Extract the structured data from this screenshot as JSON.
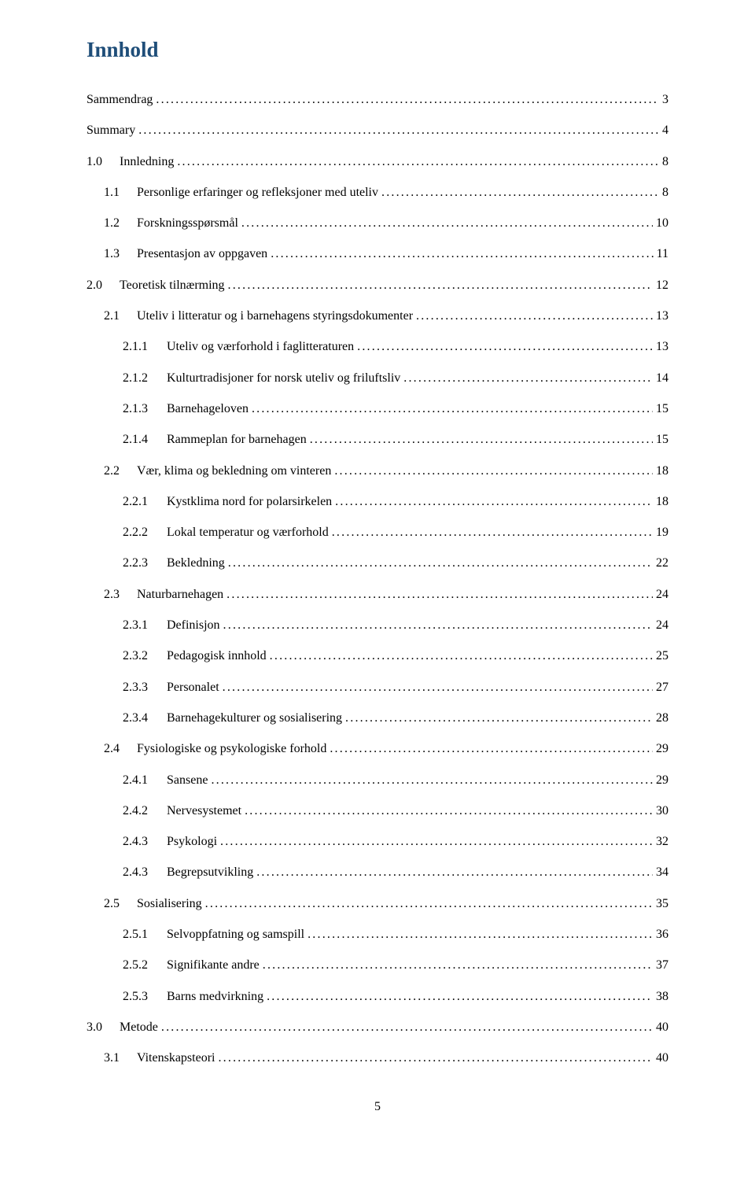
{
  "colors": {
    "heading": "#1f4e79",
    "text": "#000000",
    "background": "#ffffff"
  },
  "typography": {
    "body_font": "Times New Roman",
    "heading_fontsize_pt": 20,
    "body_fontsize_pt": 12
  },
  "heading": "Innhold",
  "page_number": "5",
  "entries": [
    {
      "indent": 0,
      "num": "",
      "label": "Sammendrag",
      "page": "3"
    },
    {
      "indent": 0,
      "num": "",
      "label": "Summary",
      "page": "4"
    },
    {
      "indent": 0,
      "num": "1.0",
      "label": "Innledning",
      "page": "8"
    },
    {
      "indent": 1,
      "num": "1.1",
      "label": "Personlige erfaringer og refleksjoner  med uteliv",
      "page": "8"
    },
    {
      "indent": 1,
      "num": "1.2",
      "label": "Forskningsspørsmål",
      "page": "10"
    },
    {
      "indent": 1,
      "num": "1.3",
      "label": "Presentasjon av oppgaven",
      "page": "11"
    },
    {
      "indent": 0,
      "num": "2.0",
      "label": "Teoretisk tilnærming",
      "page": "12"
    },
    {
      "indent": 1,
      "num": "2.1",
      "label": "Uteliv i litteratur og i barnehagens styringsdokumenter",
      "page": "13"
    },
    {
      "indent": 2,
      "num": "2.1.1",
      "label": "Uteliv og værforhold i faglitteraturen",
      "page": "13"
    },
    {
      "indent": 2,
      "num": "2.1.2",
      "label": "Kulturtradisjoner for norsk uteliv og friluftsliv",
      "page": "14"
    },
    {
      "indent": 2,
      "num": "2.1.3",
      "label": "Barnehageloven",
      "page": "15"
    },
    {
      "indent": 2,
      "num": "2.1.4",
      "label": "Rammeplan for barnehagen",
      "page": "15"
    },
    {
      "indent": 1,
      "num": "2.2",
      "label": "Vær, klima og bekledning om vinteren",
      "page": "18"
    },
    {
      "indent": 2,
      "num": "2.2.1",
      "label": "Kystklima nord for polarsirkelen",
      "page": "18"
    },
    {
      "indent": 2,
      "num": "2.2.2",
      "label": "Lokal temperatur og værforhold",
      "page": "19"
    },
    {
      "indent": 2,
      "num": "2.2.3",
      "label": "Bekledning",
      "page": "22"
    },
    {
      "indent": 1,
      "num": "2.3",
      "label": "Naturbarnehagen",
      "page": "24"
    },
    {
      "indent": 2,
      "num": "2.3.1",
      "label": "Definisjon",
      "page": "24"
    },
    {
      "indent": 2,
      "num": "2.3.2",
      "label": "Pedagogisk innhold",
      "page": "25"
    },
    {
      "indent": 2,
      "num": "2.3.3",
      "label": "Personalet",
      "page": "27"
    },
    {
      "indent": 2,
      "num": "2.3.4",
      "label": "Barnehagekulturer og sosialisering",
      "page": "28"
    },
    {
      "indent": 1,
      "num": "2.4",
      "label": "Fysiologiske og psykologiske forhold",
      "page": "29"
    },
    {
      "indent": 2,
      "num": "2.4.1",
      "label": "Sansene",
      "page": "29"
    },
    {
      "indent": 2,
      "num": "2.4.2",
      "label": "Nervesystemet",
      "page": "30"
    },
    {
      "indent": 2,
      "num": "2.4.3",
      "label": "Psykologi",
      "page": "32"
    },
    {
      "indent": 2,
      "num": "2.4.3",
      "label": "Begrepsutvikling",
      "page": "34"
    },
    {
      "indent": 1,
      "num": "2.5",
      "label": "Sosialisering",
      "page": "35"
    },
    {
      "indent": 2,
      "num": "2.5.1",
      "label": "Selvoppfatning og samspill",
      "page": "36"
    },
    {
      "indent": 2,
      "num": "2.5.2",
      "label": "Signifikante andre",
      "page": "37"
    },
    {
      "indent": 2,
      "num": "2.5.3",
      "label": "Barns medvirkning",
      "page": "38"
    },
    {
      "indent": 0,
      "num": "3.0",
      "label": "Metode",
      "page": "40"
    },
    {
      "indent": 1,
      "num": "3.1",
      "label": "Vitenskapsteori",
      "page": "40"
    }
  ]
}
